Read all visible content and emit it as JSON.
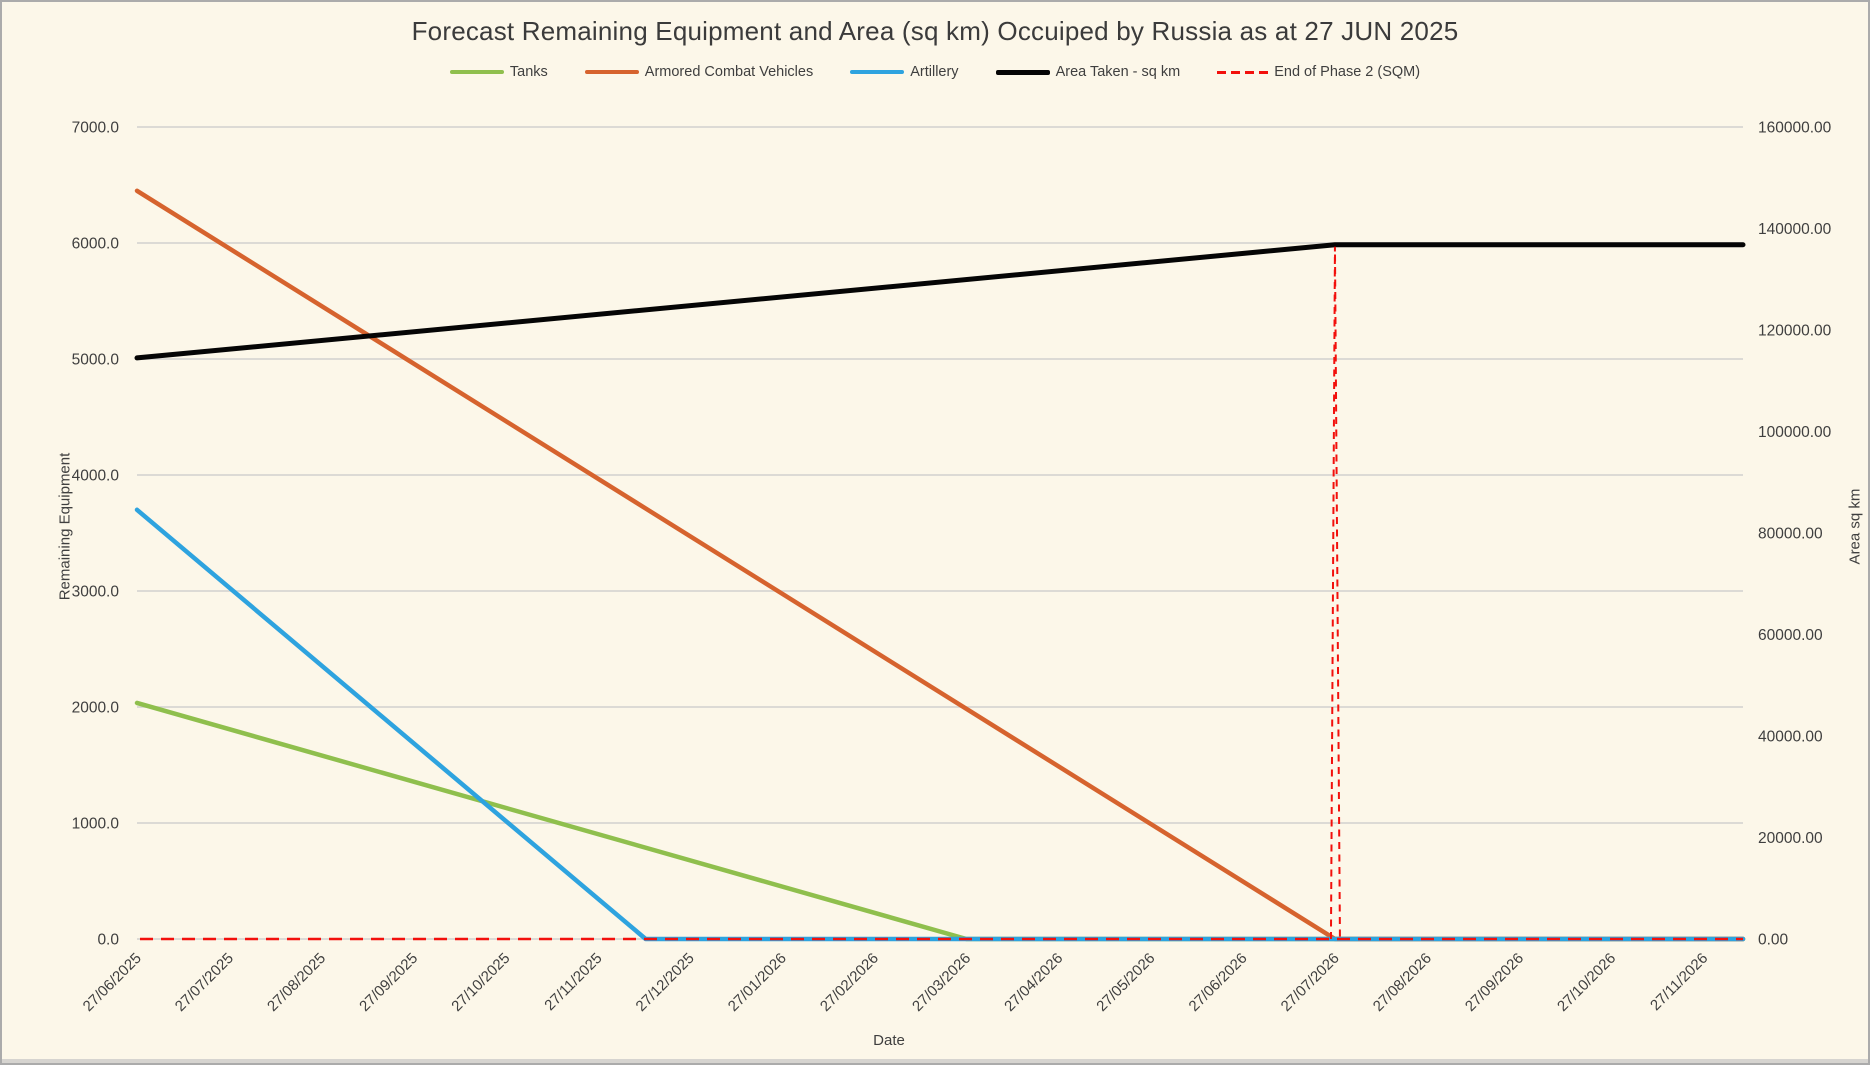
{
  "chart_data": {
    "type": "line",
    "title": "Forecast Remaining Equipment and Area (sq km) Occuiped by Russia as at 27 JUN 2025",
    "legend_position": "top",
    "grid": "horizontal-only",
    "background_color": "#FCF7E9",
    "gridline_color": "#D8D6D2",
    "text_color": "#3F3F3F",
    "x_axis": {
      "title": "Date",
      "categories": [
        "27/06/2025",
        "27/07/2025",
        "27/08/2025",
        "27/09/2025",
        "27/10/2025",
        "27/11/2025",
        "27/12/2025",
        "27/01/2026",
        "27/02/2026",
        "27/03/2026",
        "27/04/2026",
        "27/05/2026",
        "27/06/2026",
        "27/07/2026",
        "27/08/2026",
        "27/09/2026",
        "27/10/2026",
        "27/11/2026"
      ]
    },
    "left_axis": {
      "title": "Remaining Equipment",
      "min": 0,
      "max": 7000,
      "step": 1000,
      "tick_labels": [
        "7000.0",
        "6000.0",
        "5000.0",
        "4000.0",
        "3000.0",
        "2000.0",
        "1000.0",
        "0.0"
      ]
    },
    "right_axis": {
      "title": "Area sq km",
      "min": 0,
      "max": 160000,
      "step": 20000,
      "tick_labels": [
        "160000.00",
        "140000.00",
        "120000.00",
        "100000.00",
        "80000.00",
        "60000.00",
        "40000.00",
        "20000.00",
        "0.00"
      ]
    },
    "series": [
      {
        "name": "Tanks",
        "color": "#8FBF4D",
        "axis": "left",
        "shape": "decline-to-zero",
        "zero_cross_index": 9,
        "values": [
          2035,
          1809,
          1583,
          1357,
          1131,
          904,
          678,
          452,
          226,
          0,
          0,
          0,
          0,
          0,
          0,
          0,
          0,
          0
        ]
      },
      {
        "name": "Armored Combat Vehicles",
        "color": "#D6632E",
        "axis": "left",
        "shape": "decline-to-zero",
        "zero_cross_index": 13,
        "values": [
          6450,
          5954,
          5458,
          4962,
          4465,
          3969,
          3473,
          2977,
          2481,
          1985,
          1488,
          992,
          496,
          0,
          0,
          0,
          0,
          0
        ]
      },
      {
        "name": "Artillery",
        "color": "#2EA3DF",
        "axis": "left",
        "shape": "decline-to-zero",
        "zero_cross_index": 5.52,
        "values": [
          3700,
          3030,
          2360,
          1690,
          1020,
          350,
          0,
          0,
          0,
          0,
          0,
          0,
          0,
          0,
          0,
          0,
          0,
          0
        ]
      },
      {
        "name": "Area Taken - sq km",
        "color": "#050505",
        "axis": "right",
        "shape": "rise-then-flat",
        "peak_index": 13,
        "peak_value": 136800,
        "start_value": 114500,
        "values": [
          114500,
          116215,
          117931,
          119646,
          121362,
          123077,
          124792,
          126508,
          128223,
          129938,
          131654,
          133369,
          135085,
          136800,
          136800,
          136800,
          136800,
          136800
        ]
      },
      {
        "name": "End of Phase 2 (SQM)",
        "color": "#F2100C",
        "axis": "right",
        "shape": "baseline-with-spike",
        "style": "dashed",
        "baseline_value": 0,
        "spike_index": 13,
        "spike_value": 136800,
        "values": [
          0,
          0,
          0,
          0,
          0,
          0,
          0,
          0,
          0,
          0,
          0,
          0,
          0,
          136800,
          0,
          0,
          0,
          0
        ]
      }
    ]
  }
}
